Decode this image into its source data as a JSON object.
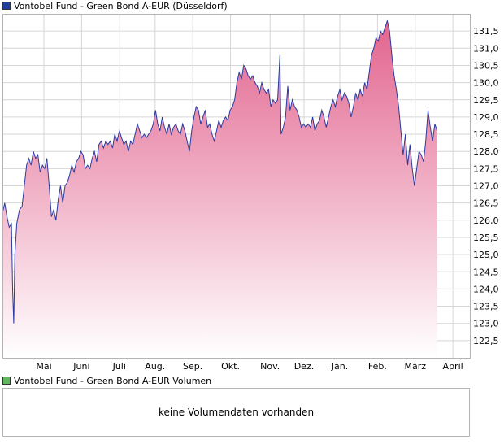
{
  "colors": {
    "line": "#2a3aa0",
    "fill_top": "#e2648e",
    "fill_bottom": "#ffffff",
    "grid": "#d6d6d6",
    "frame": "#b4b4b4",
    "swatch_main": "#1f3d99",
    "swatch_volume": "#5fb85f"
  },
  "legend": {
    "main_label": "Vontobel Fund - Green Bond A-EUR (Düsseldorf)",
    "volume_label": "Vontobel Fund - Green Bond A-EUR Volumen"
  },
  "volume": {
    "empty_text": "keine Volumendaten vorhanden"
  },
  "chart_data": {
    "type": "area",
    "title": "Vontobel Fund - Green Bond A-EUR (Düsseldorf)",
    "xlabel": "",
    "ylabel": "",
    "ylim": [
      122.0,
      132.0
    ],
    "y_ticks": [
      "122,5",
      "123,0",
      "123,5",
      "124,0",
      "124,5",
      "125,0",
      "125,5",
      "126,0",
      "126,5",
      "127,0",
      "127,5",
      "128,0",
      "128,5",
      "129,0",
      "129,5",
      "130,0",
      "130,5",
      "131,0",
      "131,5"
    ],
    "y_tick_values": [
      122.5,
      123.0,
      123.5,
      124.0,
      124.5,
      125.0,
      125.5,
      126.0,
      126.5,
      127.0,
      127.5,
      128.0,
      128.5,
      129.0,
      129.5,
      130.0,
      130.5,
      131.0,
      131.5
    ],
    "x_tick_labels": [
      "Mai",
      "Juni",
      "Juli",
      "Aug.",
      "Sep.",
      "Okt.",
      "Nov.",
      "Dez.",
      "Jan.",
      "Feb.",
      "März",
      "April"
    ],
    "x_tick_positions": [
      1.1,
      2.1,
      3.1,
      4.05,
      5.05,
      6.05,
      7.1,
      8.0,
      8.95,
      9.95,
      10.95,
      11.95
    ],
    "x_range": [
      0.0,
      12.4
    ],
    "grid": true,
    "legend": "top-left",
    "series": [
      {
        "name": "Vontobel Fund - Green Bond A-EUR (Düsseldorf)",
        "points": [
          [
            0.0,
            126.2
          ],
          [
            0.06,
            126.5
          ],
          [
            0.12,
            126.1
          ],
          [
            0.18,
            125.8
          ],
          [
            0.24,
            125.9
          ],
          [
            0.27,
            124.0
          ],
          [
            0.3,
            123.0
          ],
          [
            0.33,
            125.0
          ],
          [
            0.38,
            125.9
          ],
          [
            0.45,
            126.3
          ],
          [
            0.52,
            126.4
          ],
          [
            0.58,
            127.0
          ],
          [
            0.64,
            127.6
          ],
          [
            0.7,
            127.8
          ],
          [
            0.76,
            127.6
          ],
          [
            0.82,
            128.0
          ],
          [
            0.88,
            127.8
          ],
          [
            0.94,
            127.9
          ],
          [
            1.0,
            127.4
          ],
          [
            1.06,
            127.6
          ],
          [
            1.12,
            127.5
          ],
          [
            1.18,
            127.8
          ],
          [
            1.24,
            127.0
          ],
          [
            1.3,
            126.1
          ],
          [
            1.36,
            126.3
          ],
          [
            1.42,
            126.0
          ],
          [
            1.48,
            126.6
          ],
          [
            1.54,
            127.0
          ],
          [
            1.6,
            126.5
          ],
          [
            1.66,
            127.0
          ],
          [
            1.72,
            127.1
          ],
          [
            1.78,
            127.3
          ],
          [
            1.84,
            127.6
          ],
          [
            1.9,
            127.4
          ],
          [
            1.96,
            127.7
          ],
          [
            2.02,
            127.8
          ],
          [
            2.08,
            128.0
          ],
          [
            2.14,
            127.9
          ],
          [
            2.2,
            127.5
          ],
          [
            2.26,
            127.6
          ],
          [
            2.32,
            127.5
          ],
          [
            2.38,
            127.8
          ],
          [
            2.44,
            128.0
          ],
          [
            2.5,
            127.7
          ],
          [
            2.56,
            128.2
          ],
          [
            2.62,
            128.3
          ],
          [
            2.68,
            128.1
          ],
          [
            2.74,
            128.3
          ],
          [
            2.8,
            128.2
          ],
          [
            2.86,
            128.3
          ],
          [
            2.92,
            128.1
          ],
          [
            2.98,
            128.5
          ],
          [
            3.04,
            128.3
          ],
          [
            3.1,
            128.6
          ],
          [
            3.16,
            128.4
          ],
          [
            3.22,
            128.2
          ],
          [
            3.28,
            128.3
          ],
          [
            3.34,
            128.0
          ],
          [
            3.4,
            128.3
          ],
          [
            3.46,
            128.2
          ],
          [
            3.52,
            128.5
          ],
          [
            3.58,
            128.8
          ],
          [
            3.64,
            128.6
          ],
          [
            3.7,
            128.4
          ],
          [
            3.76,
            128.5
          ],
          [
            3.82,
            128.4
          ],
          [
            3.88,
            128.5
          ],
          [
            3.94,
            128.6
          ],
          [
            4.0,
            128.8
          ],
          [
            4.06,
            129.2
          ],
          [
            4.12,
            128.8
          ],
          [
            4.18,
            128.6
          ],
          [
            4.24,
            129.0
          ],
          [
            4.3,
            128.7
          ],
          [
            4.36,
            128.5
          ],
          [
            4.42,
            128.8
          ],
          [
            4.48,
            128.5
          ],
          [
            4.54,
            128.7
          ],
          [
            4.6,
            128.8
          ],
          [
            4.66,
            128.6
          ],
          [
            4.72,
            128.5
          ],
          [
            4.78,
            128.8
          ],
          [
            4.84,
            128.6
          ],
          [
            4.9,
            128.3
          ],
          [
            4.96,
            128.0
          ],
          [
            5.02,
            128.6
          ],
          [
            5.08,
            129.0
          ],
          [
            5.14,
            129.3
          ],
          [
            5.2,
            129.2
          ],
          [
            5.26,
            128.8
          ],
          [
            5.32,
            129.0
          ],
          [
            5.38,
            129.2
          ],
          [
            5.44,
            128.7
          ],
          [
            5.5,
            128.8
          ],
          [
            5.56,
            128.5
          ],
          [
            5.62,
            128.3
          ],
          [
            5.68,
            128.6
          ],
          [
            5.74,
            128.9
          ],
          [
            5.8,
            128.7
          ],
          [
            5.86,
            128.9
          ],
          [
            5.92,
            129.0
          ],
          [
            5.98,
            128.9
          ],
          [
            6.04,
            129.2
          ],
          [
            6.1,
            129.3
          ],
          [
            6.16,
            129.5
          ],
          [
            6.22,
            130.0
          ],
          [
            6.28,
            130.3
          ],
          [
            6.34,
            130.1
          ],
          [
            6.4,
            130.5
          ],
          [
            6.46,
            130.4
          ],
          [
            6.52,
            130.2
          ],
          [
            6.58,
            130.1
          ],
          [
            6.64,
            130.2
          ],
          [
            6.7,
            130.0
          ],
          [
            6.76,
            129.9
          ],
          [
            6.82,
            129.7
          ],
          [
            6.88,
            130.0
          ],
          [
            6.94,
            129.8
          ],
          [
            7.0,
            129.7
          ],
          [
            7.06,
            129.8
          ],
          [
            7.12,
            129.3
          ],
          [
            7.18,
            129.5
          ],
          [
            7.24,
            129.4
          ],
          [
            7.3,
            129.5
          ],
          [
            7.36,
            130.8
          ],
          [
            7.39,
            128.5
          ],
          [
            7.45,
            128.7
          ],
          [
            7.51,
            129.0
          ],
          [
            7.57,
            129.9
          ],
          [
            7.63,
            129.2
          ],
          [
            7.69,
            129.5
          ],
          [
            7.75,
            129.3
          ],
          [
            7.81,
            129.2
          ],
          [
            7.87,
            129.0
          ],
          [
            7.93,
            128.7
          ],
          [
            7.99,
            128.8
          ],
          [
            8.05,
            128.7
          ],
          [
            8.11,
            128.8
          ],
          [
            8.17,
            128.7
          ],
          [
            8.23,
            129.0
          ],
          [
            8.29,
            128.6
          ],
          [
            8.35,
            128.8
          ],
          [
            8.41,
            128.9
          ],
          [
            8.47,
            129.2
          ],
          [
            8.53,
            129.0
          ],
          [
            8.59,
            128.7
          ],
          [
            8.65,
            129.0
          ],
          [
            8.71,
            129.3
          ],
          [
            8.77,
            129.5
          ],
          [
            8.83,
            129.3
          ],
          [
            8.89,
            129.6
          ],
          [
            8.95,
            129.8
          ],
          [
            9.01,
            129.5
          ],
          [
            9.07,
            129.7
          ],
          [
            9.13,
            129.6
          ],
          [
            9.19,
            129.4
          ],
          [
            9.25,
            129.0
          ],
          [
            9.31,
            129.3
          ],
          [
            9.37,
            129.7
          ],
          [
            9.43,
            129.5
          ],
          [
            9.49,
            129.8
          ],
          [
            9.55,
            129.6
          ],
          [
            9.61,
            130.0
          ],
          [
            9.67,
            129.8
          ],
          [
            9.73,
            130.3
          ],
          [
            9.79,
            130.8
          ],
          [
            9.85,
            131.0
          ],
          [
            9.91,
            131.3
          ],
          [
            9.97,
            131.2
          ],
          [
            10.03,
            131.5
          ],
          [
            10.09,
            131.4
          ],
          [
            10.15,
            131.6
          ],
          [
            10.21,
            131.8
          ],
          [
            10.27,
            131.5
          ],
          [
            10.33,
            130.8
          ],
          [
            10.39,
            130.2
          ],
          [
            10.45,
            129.8
          ],
          [
            10.51,
            129.3
          ],
          [
            10.57,
            128.6
          ],
          [
            10.63,
            127.9
          ],
          [
            10.69,
            128.5
          ],
          [
            10.75,
            127.6
          ],
          [
            10.81,
            128.2
          ],
          [
            10.87,
            127.5
          ],
          [
            10.93,
            127.0
          ],
          [
            10.99,
            127.5
          ],
          [
            11.05,
            128.0
          ],
          [
            11.11,
            127.9
          ],
          [
            11.17,
            127.7
          ],
          [
            11.23,
            128.3
          ],
          [
            11.29,
            129.2
          ],
          [
            11.35,
            128.7
          ],
          [
            11.41,
            128.3
          ],
          [
            11.47,
            128.8
          ],
          [
            11.53,
            128.6
          ]
        ]
      }
    ]
  }
}
